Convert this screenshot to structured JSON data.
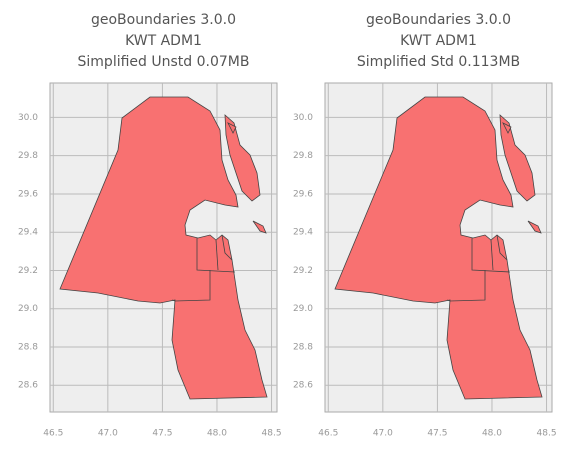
{
  "chart_data": [
    {
      "type": "map",
      "title": [
        "geoBoundaries 3.0.0",
        "KWT ADM1",
        "Simplified Unstd 0.07MB"
      ],
      "xlim": [
        46.47,
        48.55
      ],
      "ylim": [
        28.46,
        30.18
      ],
      "xticks": [
        46.5,
        {
          "value": 47,
          "label": "47.0"
        },
        47.5,
        {
          "value": 48,
          "label": "48.0"
        },
        48.5
      ],
      "yticks": [
        28.6,
        28.8,
        {
          "value": 29,
          "label": "29.0"
        },
        29.2,
        29.4,
        29.6,
        29.8,
        {
          "value": 30,
          "label": "30.0"
        }
      ],
      "grid": true,
      "color": "#f87171"
    },
    {
      "type": "map",
      "title": [
        "geoBoundaries 3.0.0",
        "KWT ADM1",
        "Simplified Std 0.113MB"
      ],
      "xlim": [
        46.47,
        48.55
      ],
      "ylim": [
        28.46,
        30.18
      ],
      "xticks": [
        46.5,
        {
          "value": 47,
          "label": "47.0"
        },
        47.5,
        {
          "value": 48,
          "label": "48.0"
        },
        48.5
      ],
      "yticks": [
        28.6,
        28.8,
        {
          "value": 29,
          "label": "29.0"
        },
        29.2,
        29.4,
        29.6,
        29.8,
        {
          "value": 30,
          "label": "30.0"
        }
      ],
      "grid": true,
      "color": "#f87171"
    }
  ]
}
